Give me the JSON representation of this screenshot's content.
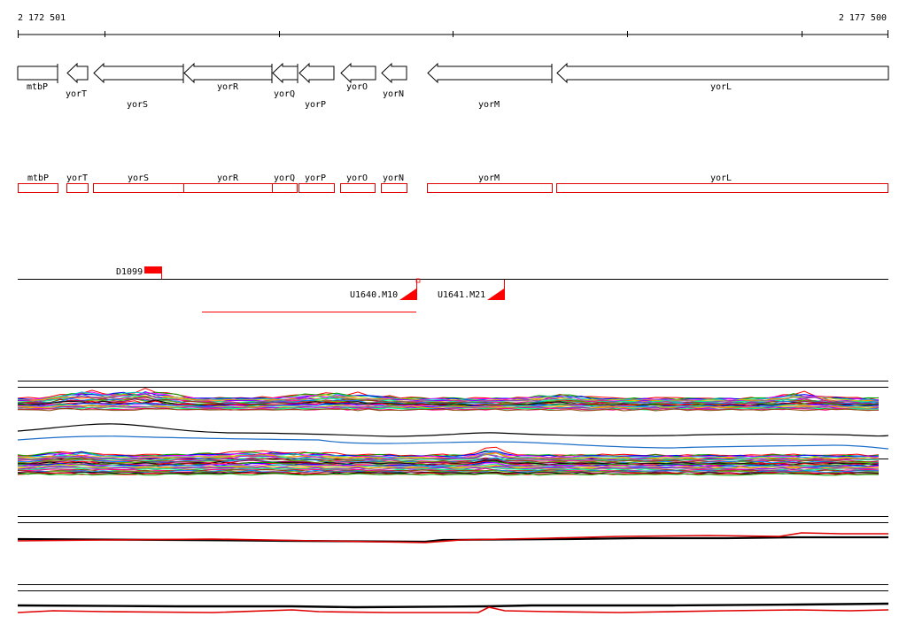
{
  "ruler": {
    "start_label": "2 172 501",
    "end_label": "2 177 500"
  },
  "genes": [
    {
      "name": "mtbP",
      "strand": "+"
    },
    {
      "name": "yorT",
      "strand": "-"
    },
    {
      "name": "yorS",
      "strand": "-"
    },
    {
      "name": "yorR",
      "strand": "-"
    },
    {
      "name": "yorQ",
      "strand": "-"
    },
    {
      "name": "yorP",
      "strand": "-"
    },
    {
      "name": "yorO",
      "strand": "-"
    },
    {
      "name": "yorN",
      "strand": "-"
    },
    {
      "name": "yorM",
      "strand": "-"
    },
    {
      "name": "yorL",
      "strand": "-"
    }
  ],
  "features": [
    {
      "name": "D1099"
    },
    {
      "name": "U1640.M10"
    },
    {
      "name": "U1641.M21"
    }
  ],
  "colors": {
    "gene_outline": "#000000",
    "region_box": "#e00000",
    "feature": "#ff0000",
    "track_line": "#000000"
  }
}
